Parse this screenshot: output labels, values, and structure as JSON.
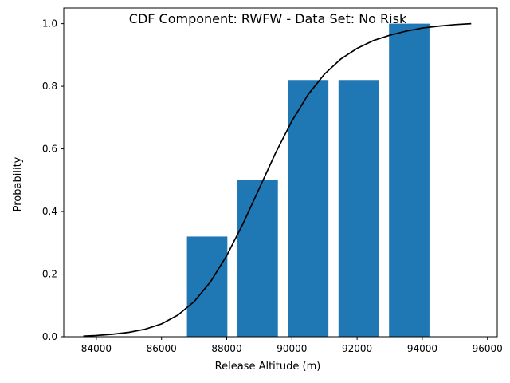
{
  "colors": {
    "bar": "#1f77b4",
    "line": "#000000",
    "axis": "#000000",
    "background": "#ffffff"
  },
  "chart_data": {
    "type": "bar",
    "title": "CDF Component: RWFW - Data Set: No Risk",
    "xlabel": "Release Altitude (m)",
    "ylabel": "Probability",
    "xlim": [
      83000,
      96300
    ],
    "ylim": [
      0,
      1.05
    ],
    "grid": false,
    "legend": "none",
    "xticks": [
      84000,
      86000,
      88000,
      90000,
      92000,
      94000,
      96000
    ],
    "yticks": [
      0.0,
      0.2,
      0.4,
      0.6,
      0.8,
      1.0
    ],
    "xtick_labels": [
      "84000",
      "86000",
      "88000",
      "90000",
      "92000",
      "94000",
      "96000"
    ],
    "ytick_labels": [
      "0.0",
      "0.2",
      "0.4",
      "0.6",
      "0.8",
      "1.0"
    ],
    "bar_width": 1240,
    "bars": [
      {
        "x": 87400,
        "value": 0.32
      },
      {
        "x": 88950,
        "value": 0.5
      },
      {
        "x": 90500,
        "value": 0.82
      },
      {
        "x": 92050,
        "value": 0.82
      },
      {
        "x": 93600,
        "value": 1.0
      }
    ],
    "curve": {
      "type": "line",
      "x": [
        83600,
        84000,
        84500,
        85000,
        85500,
        86000,
        86500,
        87000,
        87500,
        88000,
        88500,
        89000,
        89500,
        90000,
        90500,
        91000,
        91500,
        92000,
        92500,
        93000,
        93500,
        94000,
        94500,
        95000,
        95500
      ],
      "y": [
        0.002,
        0.004,
        0.008,
        0.014,
        0.024,
        0.041,
        0.069,
        0.112,
        0.175,
        0.259,
        0.361,
        0.474,
        0.587,
        0.689,
        0.774,
        0.839,
        0.887,
        0.921,
        0.946,
        0.963,
        0.976,
        0.986,
        0.992,
        0.997,
        1.0
      ]
    }
  }
}
